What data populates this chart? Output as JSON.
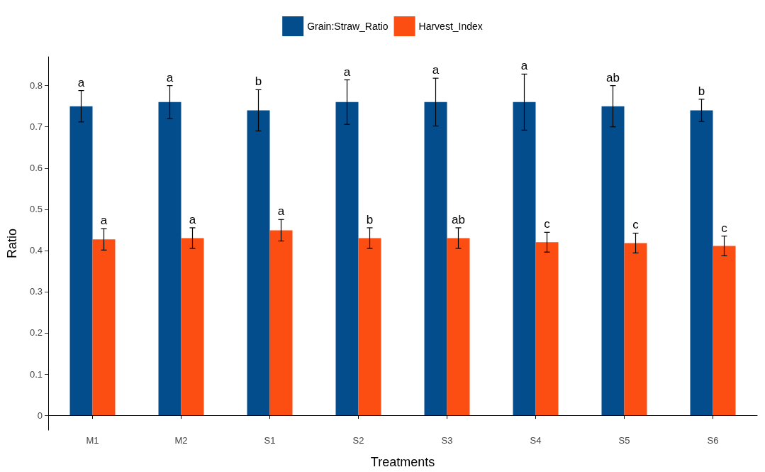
{
  "chart_data": {
    "type": "bar",
    "xlabel": "Treatments",
    "ylabel": "Ratio",
    "categories": [
      "M1",
      "M2",
      "S1",
      "S2",
      "S3",
      "S4",
      "S5",
      "S6"
    ],
    "series": [
      {
        "name": "Grain:Straw_Ratio",
        "color": "#034d8c",
        "values": [
          0.75,
          0.76,
          0.74,
          0.76,
          0.76,
          0.76,
          0.75,
          0.74
        ],
        "errors": [
          0.038,
          0.04,
          0.05,
          0.054,
          0.058,
          0.068,
          0.05,
          0.027
        ]
      },
      {
        "name": "Harvest_Index",
        "color": "#fc4d13",
        "values": [
          0.427,
          0.43,
          0.449,
          0.43,
          0.43,
          0.42,
          0.418,
          0.411
        ],
        "errors": [
          0.026,
          0.025,
          0.026,
          0.025,
          0.025,
          0.024,
          0.024,
          0.024
        ]
      }
    ],
    "ylim": [
      -0.036,
      0.87
    ],
    "yticks": [
      0,
      0.1,
      0.2,
      0.3,
      0.4,
      0.5,
      0.6,
      0.7,
      0.8
    ],
    "grid": false,
    "legend": "top",
    "annotations": [
      {
        "text": "a",
        "x": "M1",
        "y": 0.75
      },
      {
        "text": "a",
        "x": "M2",
        "y": 0.76
      },
      {
        "text": "b",
        "x": "S1",
        "y": 0.74
      },
      {
        "text": "a",
        "x": "S2",
        "y": 0.76
      },
      {
        "text": "a",
        "x": "S3",
        "y": 0.76
      },
      {
        "text": "a",
        "x": "S4",
        "y": 0.76
      },
      {
        "text": "ab",
        "x": "S5",
        "y": 0.75
      },
      {
        "text": "b",
        "x": "S6",
        "y": 0.74
      },
      {
        "text": "a",
        "x": "M1",
        "y": 0.427
      },
      {
        "text": "a",
        "x": "M2",
        "y": 0.43
      },
      {
        "text": "a",
        "x": "S1",
        "y": 0.449
      },
      {
        "text": "b",
        "x": "S2",
        "y": 0.43
      },
      {
        "text": "ab",
        "x": "S3",
        "y": 0.43
      },
      {
        "text": "c",
        "x": "S4",
        "y": 0.42
      },
      {
        "text": "c",
        "x": "S5",
        "y": 0.418
      },
      {
        "text": "c",
        "x": "S6",
        "y": 0.411
      }
    ]
  }
}
